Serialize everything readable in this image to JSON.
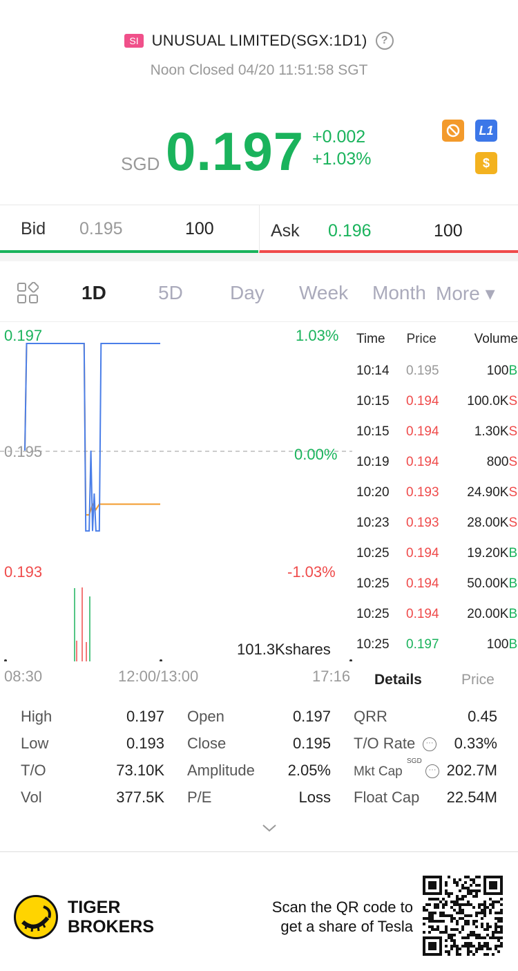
{
  "header": {
    "exchange_badge": "SI",
    "title": "UNUSUAL LIMITED(SGX:1D1)",
    "status": "Noon Closed 04/20 11:51:58 SGT"
  },
  "quote": {
    "currency": "SGD",
    "price": "0.197",
    "change": "+0.002",
    "change_pct": "+1.03%",
    "level_badge": "L1",
    "dollar_badge": "$"
  },
  "bid": {
    "label": "Bid",
    "price": "0.195",
    "volume": "100"
  },
  "ask": {
    "label": "Ask",
    "price": "0.196",
    "volume": "100"
  },
  "tabs": [
    "1D",
    "5D",
    "Day",
    "Week",
    "Month",
    "More ▾"
  ],
  "chart_labels": {
    "high_price": "0.197",
    "mid_price": "0.195",
    "low_price": "0.193",
    "high_pct": "1.03%",
    "mid_pct": "0.00%",
    "low_pct": "-1.03%",
    "volume_total": "101.3Kshares",
    "time_start": "08:30",
    "time_mid": "12:00/13:00",
    "time_end": "17:16"
  },
  "chart_data": {
    "type": "line",
    "ylim": [
      0.193,
      0.197
    ],
    "series": [
      {
        "color": "#4a7ee8",
        "points": [
          [
            0,
            0.195
          ],
          [
            1,
            0.197
          ],
          [
            35,
            0.197
          ],
          [
            36,
            0.1935
          ],
          [
            38,
            0.1935
          ],
          [
            39,
            0.195
          ],
          [
            40,
            0.1935
          ],
          [
            41,
            0.1942
          ],
          [
            42,
            0.1935
          ],
          [
            44,
            0.1935
          ],
          [
            45,
            0.197
          ],
          [
            80,
            0.197
          ]
        ]
      },
      {
        "color": "#f39a2b",
        "points": [
          [
            0,
            0.195
          ],
          [
            1,
            0.197
          ],
          [
            35,
            0.197
          ],
          [
            36,
            0.1938
          ],
          [
            38,
            0.1938
          ],
          [
            40,
            0.194
          ],
          [
            42,
            0.1939
          ],
          [
            44,
            0.194
          ],
          [
            80,
            0.194
          ]
        ]
      }
    ]
  },
  "ticks_table": {
    "headers": [
      "Time",
      "Price",
      "Volume"
    ],
    "rows": [
      {
        "time": "10:14",
        "price": "0.195",
        "volume": "100",
        "side": "B",
        "pc": "grey",
        "sc": "green"
      },
      {
        "time": "10:15",
        "price": "0.194",
        "volume": "100.0K",
        "side": "S",
        "pc": "red",
        "sc": "red"
      },
      {
        "time": "10:15",
        "price": "0.194",
        "volume": "1.30K",
        "side": "S",
        "pc": "red",
        "sc": "red"
      },
      {
        "time": "10:19",
        "price": "0.194",
        "volume": "800",
        "side": "S",
        "pc": "red",
        "sc": "red"
      },
      {
        "time": "10:20",
        "price": "0.193",
        "volume": "24.90K",
        "side": "S",
        "pc": "red",
        "sc": "red"
      },
      {
        "time": "10:23",
        "price": "0.193",
        "volume": "28.00K",
        "side": "S",
        "pc": "red",
        "sc": "red"
      },
      {
        "time": "10:25",
        "price": "0.194",
        "volume": "19.20K",
        "side": "B",
        "pc": "red",
        "sc": "green"
      },
      {
        "time": "10:25",
        "price": "0.194",
        "volume": "50.00K",
        "side": "B",
        "pc": "red",
        "sc": "green"
      },
      {
        "time": "10:25",
        "price": "0.194",
        "volume": "20.00K",
        "side": "B",
        "pc": "red",
        "sc": "green"
      },
      {
        "time": "10:25",
        "price": "0.197",
        "volume": "100",
        "side": "B",
        "pc": "green",
        "sc": "green"
      }
    ]
  },
  "detail_tabs": {
    "details": "Details",
    "price": "Price"
  },
  "stats": {
    "high": {
      "label": "High",
      "value": "0.197"
    },
    "low": {
      "label": "Low",
      "value": "0.193"
    },
    "to": {
      "label": "T/O",
      "value": "73.10K"
    },
    "vol": {
      "label": "Vol",
      "value": "377.5K"
    },
    "open": {
      "label": "Open",
      "value": "0.197"
    },
    "close": {
      "label": "Close",
      "value": "0.195"
    },
    "amplitude": {
      "label": "Amplitude",
      "value": "2.05%"
    },
    "pe": {
      "label": "P/E",
      "value": "Loss"
    },
    "qrr": {
      "label": "QRR",
      "value": "0.45"
    },
    "to_rate": {
      "label": "T/O Rate",
      "value": "0.33%"
    },
    "mkt_cap": {
      "label": "Mkt Cap",
      "unit": "SGD",
      "value": "202.7M"
    },
    "float_cap": {
      "label": "Float Cap",
      "value": "22.54M"
    }
  },
  "footer": {
    "brand_line1": "TIGER",
    "brand_line2": "BROKERS",
    "promo_line1": "Scan the QR code to",
    "promo_line2": "get a share of Tesla"
  }
}
